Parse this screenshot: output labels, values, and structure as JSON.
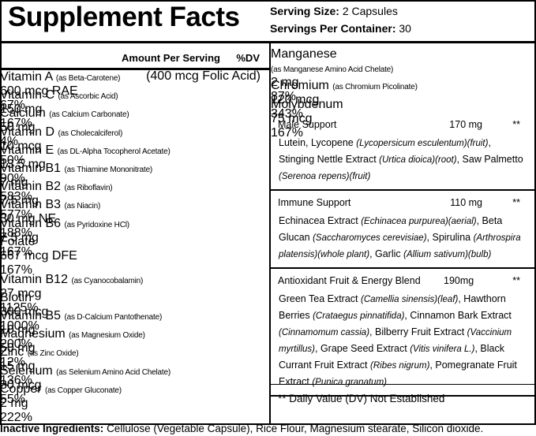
{
  "header": {
    "title": "Supplement Facts",
    "serving_size_label": "Serving Size:",
    "serving_size": "2 Capsules",
    "servings_per_container_label": "Servings Per Container:",
    "servings_per_container": "30"
  },
  "left_column": {
    "amount_header": "Amount Per Serving",
    "dv_header": "%DV",
    "rows": [
      {
        "name": "Vitamin A",
        "source": "(as Beta-Carotene)",
        "amount": "600 mcg RAE",
        "dv": "67%"
      },
      {
        "name": "Vitamin C",
        "source": "(as Ascorbic Acid)",
        "amount": "150 mg",
        "dv": "167%"
      },
      {
        "name": "Calcium",
        "source": "(as Calcium Carbonate)",
        "amount": "50 mg",
        "dv": "4%"
      },
      {
        "name": "Vitamin D",
        "source": "(as Cholecalciferol)",
        "amount": "10 mcg",
        "dv": "50%"
      },
      {
        "name": "Vitamin E",
        "source": "(as DL-Alpha Tocopherol Acetate)",
        "amount": "13.5 mg",
        "dv": "90%"
      },
      {
        "name": "Vitamin B1",
        "source": "(as Thiamine Mononitrate)",
        "amount": "7 mg",
        "dv": "583%"
      },
      {
        "name": "Vitamin B2",
        "source": "(as Riboflavin)",
        "amount": "7.5 mg",
        "dv": "577%"
      },
      {
        "name": "Vitamin B3",
        "source": "(as Niacin)",
        "amount": "30 mg NE",
        "dv": "188%"
      },
      {
        "name": "Vitamin B6",
        "source": "(as Pyridoxine HCl)",
        "amount": "7.5 mg",
        "dv": "167%"
      },
      {
        "name": "Folate",
        "amount": "667 mcg DFE",
        "dv": "167%",
        "amount_note": "(400 mcg Folic Acid)"
      },
      {
        "name": "Vitamin B12",
        "source": "(as Cyanocobalamin)",
        "amount": "27 mcg",
        "dv": "1125%"
      },
      {
        "name": "Biotin",
        "amount": "300 mcg",
        "dv": "1000%"
      },
      {
        "name": "Vitamin B5",
        "source": "(as D-Calcium Pantothenate)",
        "amount": "10 mg",
        "dv": "200%"
      },
      {
        "name": "Magnesium",
        "source": "(as Magnesium Oxide)",
        "amount": "50 mg",
        "dv": "12%"
      },
      {
        "name": "Zinc",
        "source": "(as Zinc Oxide)",
        "amount": "15 mg",
        "dv": "136%"
      },
      {
        "name": "Selenium",
        "source": "(as Selenium Amino Acid Chelate)",
        "amount": "30 mcg",
        "dv": "55%"
      },
      {
        "name": "Copper",
        "source": "(as Copper Gluconate)",
        "amount": "2 mg",
        "dv": "222%"
      }
    ]
  },
  "right_column": {
    "rows": [
      {
        "name": "Manganese",
        "source": "(as Manganese Amino Acid Chelate)",
        "amount": "2 mg",
        "dv": "87%"
      },
      {
        "name": "Chromium",
        "source": "(as Chromium Picolinate)",
        "amount": "120 mcg",
        "dv": "343%"
      },
      {
        "name": "Molybdenum",
        "amount": "75 mcg",
        "dv": "167%"
      }
    ],
    "blends": [
      {
        "name": "Male Support",
        "amount": "170 mg",
        "dv": "**",
        "description": [
          {
            "text": "Lutein, Lycopene "
          },
          {
            "text": "(Lycopersicum esculentum)(fruit)",
            "italic": true
          },
          {
            "text": ", Stinging Nettle Extract "
          },
          {
            "text": "(Urtica dioica)(root)",
            "italic": true
          },
          {
            "text": ", Saw Palmetto "
          },
          {
            "text": "(Serenoa repens)(fruit)",
            "italic": true
          }
        ]
      },
      {
        "name": "Immune Support",
        "amount": "110 mg",
        "dv": "**",
        "description": [
          {
            "text": "Echinacea Extract "
          },
          {
            "text": "(Echinacea purpurea)(aerial)",
            "italic": true
          },
          {
            "text": ", Beta Glucan "
          },
          {
            "text": "(Saccharomyces cerevisiae)",
            "italic": true
          },
          {
            "text": ", Spirulina "
          },
          {
            "text": "(Arthrospira platensis)(whole plant)",
            "italic": true
          },
          {
            "text": ", Garlic "
          },
          {
            "text": "(Allium sativum)(bulb)",
            "italic": true
          }
        ]
      },
      {
        "name": "Antioxidant Fruit & Energy Blend",
        "amount": "190mg",
        "dv": "**",
        "description": [
          {
            "text": "Green Tea Extract "
          },
          {
            "text": "(Camellia sinensis)(leaf)",
            "italic": true
          },
          {
            "text": ", Hawthorn Berries "
          },
          {
            "text": "(Crataegus pinnatifida)",
            "italic": true
          },
          {
            "text": ", Cinnamon Bark Extract "
          },
          {
            "text": "(Cinnamomum cassia)",
            "italic": true
          },
          {
            "text": ", Bilberry Fruit Extract "
          },
          {
            "text": "(Vaccinium myrtillus)",
            "italic": true
          },
          {
            "text": ", Grape Seed Extract "
          },
          {
            "text": "(Vitis vinifera L.)",
            "italic": true
          },
          {
            "text": ", Black Currant Fruit Extract "
          },
          {
            "text": "(Ribes nigrum)",
            "italic": true
          },
          {
            "text": ", Pomegranate Fruit Extract "
          },
          {
            "text": "(Punica granatum)",
            "italic": true
          }
        ]
      }
    ],
    "footnote": "** Daily Value (DV) Not Established"
  },
  "inactive": {
    "label": "Inactive Ingredients:",
    "text": "Cellulose (Vegetable Capsule), Rice Flour, Magnesium stearate, Silicon dioxide."
  }
}
